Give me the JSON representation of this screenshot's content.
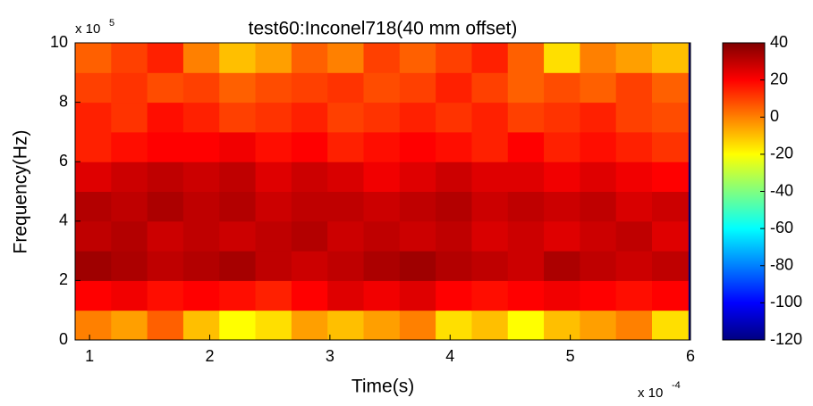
{
  "chart_data": {
    "type": "heatmap",
    "title": "test60:Inconel718(40 mm offset)",
    "x_label": "Time(s)",
    "y_label": "Frequency(Hz)",
    "x_multiplier": {
      "base": "x 10",
      "exponent": "-4"
    },
    "y_multiplier": {
      "base": "x 10",
      "exponent": "5"
    },
    "x": [
      1.03,
      1.33,
      1.63,
      1.93,
      2.23,
      2.53,
      2.83,
      3.13,
      3.43,
      3.73,
      4.03,
      4.33,
      4.63,
      4.93,
      5.23,
      5.53,
      5.83
    ],
    "y": [
      0.5,
      1.5,
      2.5,
      3.5,
      4.5,
      5.5,
      6.5,
      7.5,
      8.5,
      9.5
    ],
    "values": [
      [
        0,
        -5,
        5,
        -10,
        -20,
        -15,
        -5,
        -10,
        -5,
        0,
        -15,
        -10,
        -20,
        -10,
        -5,
        0,
        -15
      ],
      [
        20,
        22,
        18,
        20,
        18,
        15,
        20,
        25,
        22,
        25,
        20,
        18,
        20,
        22,
        20,
        18,
        20
      ],
      [
        35,
        33,
        30,
        32,
        34,
        30,
        28,
        30,
        33,
        35,
        32,
        30,
        28,
        33,
        30,
        28,
        30
      ],
      [
        30,
        32,
        28,
        30,
        28,
        30,
        32,
        28,
        30,
        28,
        30,
        26,
        28,
        25,
        28,
        30,
        25
      ],
      [
        32,
        30,
        33,
        30,
        32,
        28,
        30,
        30,
        28,
        30,
        32,
        28,
        30,
        28,
        30,
        26,
        28
      ],
      [
        25,
        28,
        30,
        28,
        30,
        25,
        28,
        26,
        22,
        25,
        28,
        25,
        25,
        22,
        25,
        22,
        20
      ],
      [
        15,
        18,
        20,
        20,
        22,
        18,
        20,
        15,
        18,
        20,
        18,
        15,
        20,
        15,
        18,
        15,
        12
      ],
      [
        15,
        12,
        18,
        15,
        10,
        12,
        15,
        10,
        12,
        15,
        12,
        15,
        10,
        12,
        15,
        10,
        8
      ],
      [
        10,
        12,
        8,
        10,
        5,
        8,
        10,
        12,
        8,
        10,
        15,
        10,
        5,
        8,
        5,
        10,
        5
      ],
      [
        5,
        10,
        15,
        0,
        -10,
        -5,
        5,
        0,
        10,
        5,
        10,
        15,
        5,
        -15,
        0,
        -5,
        -10
      ]
    ],
    "xlim": [
      0.88,
      6.0
    ],
    "ylim": [
      0,
      10
    ],
    "xticks": [
      1,
      2,
      3,
      4,
      5,
      6
    ],
    "yticks": [
      0,
      2,
      4,
      6,
      8,
      10
    ],
    "clim": [
      -120,
      40
    ],
    "cticks": [
      -120,
      -100,
      -80,
      -60,
      -40,
      -20,
      0,
      20,
      40
    ],
    "colormap": "jet"
  }
}
